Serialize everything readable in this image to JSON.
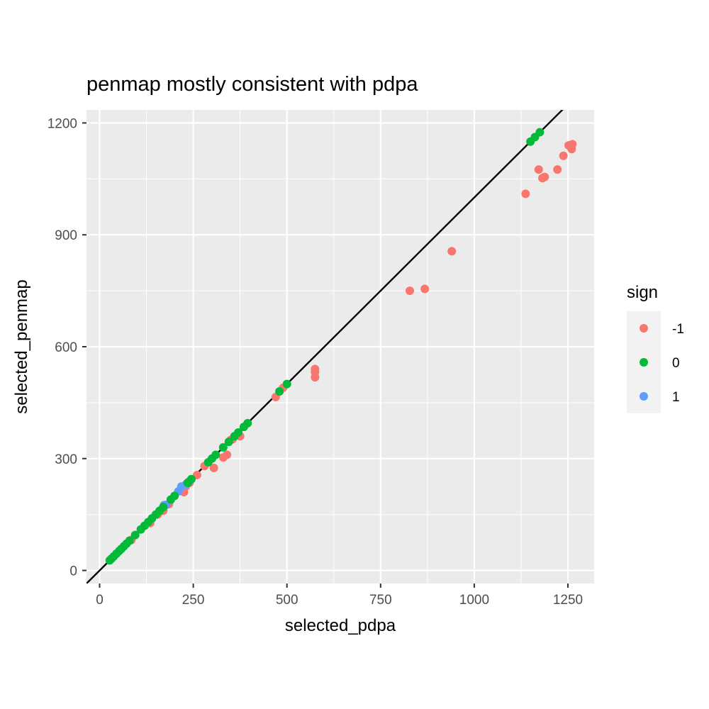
{
  "chart_data": {
    "type": "scatter",
    "title": "penmap mostly consistent with pdpa",
    "xlabel": "selected_pdpa",
    "ylabel": "selected_penmap",
    "xlim": [
      -35,
      1320
    ],
    "ylim": [
      -35,
      1235
    ],
    "xticks": [
      0,
      250,
      500,
      750,
      1000,
      1250
    ],
    "yticks": [
      0,
      300,
      600,
      900,
      1200
    ],
    "xtick_labels": [
      "0",
      "250",
      "500",
      "750",
      "1000",
      "1250"
    ],
    "ytick_labels": [
      "0",
      "300",
      "600",
      "900",
      "1200"
    ],
    "grid": true,
    "reference_line": {
      "slope": 1,
      "intercept": 0,
      "color": "#000000"
    },
    "legend": {
      "title": "sign",
      "position": "right",
      "entries": [
        {
          "label": "-1",
          "color": "#F8766D"
        },
        {
          "label": "0",
          "color": "#00BA38"
        },
        {
          "label": "1",
          "color": "#619CFF"
        }
      ]
    },
    "series": [
      {
        "name": "-1",
        "color": "#F8766D",
        "points": [
          [
            85,
            82
          ],
          [
            135,
            127
          ],
          [
            155,
            150
          ],
          [
            170,
            160
          ],
          [
            185,
            178
          ],
          [
            220,
            215
          ],
          [
            225,
            210
          ],
          [
            230,
            225
          ],
          [
            240,
            235
          ],
          [
            260,
            256
          ],
          [
            280,
            280
          ],
          [
            305,
            275
          ],
          [
            330,
            303
          ],
          [
            340,
            310
          ],
          [
            350,
            350
          ],
          [
            355,
            352
          ],
          [
            375,
            360
          ],
          [
            470,
            465
          ],
          [
            490,
            490
          ],
          [
            575,
            518
          ],
          [
            575,
            532
          ],
          [
            575,
            540
          ],
          [
            828,
            750
          ],
          [
            868,
            755
          ],
          [
            940,
            856
          ],
          [
            1137,
            1010
          ],
          [
            1172,
            1075
          ],
          [
            1182,
            1052
          ],
          [
            1188,
            1055
          ],
          [
            1222,
            1075
          ],
          [
            1238,
            1112
          ],
          [
            1252,
            1140
          ],
          [
            1260,
            1130
          ],
          [
            1262,
            1143
          ]
        ]
      },
      {
        "name": "0",
        "color": "#00BA38",
        "points": [
          [
            27,
            27
          ],
          [
            32,
            32
          ],
          [
            38,
            38
          ],
          [
            45,
            45
          ],
          [
            52,
            52
          ],
          [
            58,
            58
          ],
          [
            65,
            65
          ],
          [
            72,
            72
          ],
          [
            80,
            80
          ],
          [
            95,
            95
          ],
          [
            110,
            110
          ],
          [
            120,
            120
          ],
          [
            130,
            130
          ],
          [
            140,
            140
          ],
          [
            150,
            150
          ],
          [
            160,
            160
          ],
          [
            170,
            170
          ],
          [
            190,
            190
          ],
          [
            200,
            200
          ],
          [
            235,
            235
          ],
          [
            245,
            245
          ],
          [
            290,
            290
          ],
          [
            300,
            300
          ],
          [
            310,
            310
          ],
          [
            330,
            330
          ],
          [
            345,
            345
          ],
          [
            360,
            360
          ],
          [
            370,
            370
          ],
          [
            385,
            385
          ],
          [
            395,
            395
          ],
          [
            480,
            480
          ],
          [
            500,
            500
          ],
          [
            1150,
            1150
          ],
          [
            1162,
            1162
          ],
          [
            1175,
            1175
          ]
        ]
      },
      {
        "name": "1",
        "color": "#619CFF",
        "points": [
          [
            172,
            175
          ],
          [
            178,
            176
          ],
          [
            210,
            212
          ],
          [
            218,
            225
          ],
          [
            230,
            230
          ],
          [
            238,
            238
          ]
        ]
      }
    ]
  }
}
